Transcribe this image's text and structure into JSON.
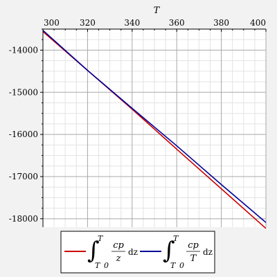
{
  "chart_data": {
    "type": "line",
    "xlabel": "T",
    "ylabel": "",
    "xlim": [
      300,
      400
    ],
    "ylim": [
      -18200,
      -13500
    ],
    "x_ticks": [
      300,
      320,
      340,
      360,
      380,
      400
    ],
    "y_ticks": [
      -14000,
      -15000,
      -16000,
      -17000,
      -18000
    ],
    "x_tick_labels": [
      "300",
      "320",
      "340",
      "360",
      "380",
      "400"
    ],
    "y_tick_labels": [
      "-14000",
      "-15000",
      "-16000",
      "-17000",
      "-18000"
    ],
    "grid": true,
    "legend_position": "bottom",
    "series": [
      {
        "color": "#cc0000",
        "x": [
          300,
          320,
          340,
          360,
          380,
          400
        ],
        "y": [
          -13560,
          -14480,
          -15400,
          -16350,
          -17290,
          -18230
        ]
      },
      {
        "color": "#000099",
        "x": [
          300,
          320,
          340,
          360,
          380,
          400
        ],
        "y": [
          -13530,
          -14480,
          -15380,
          -16270,
          -17190,
          -18090
        ]
      }
    ],
    "legend": [
      {
        "color": "#cc0000",
        "upper_limit": "T",
        "lower_limit": "T",
        "lower_limit_sub": "0",
        "numerator": "cp",
        "denominator": "z",
        "differential": "dz"
      },
      {
        "color": "#000099",
        "upper_limit": "T",
        "lower_limit": "T",
        "lower_limit_sub": "0",
        "numerator": "cp",
        "denominator": "T",
        "differential": "dz"
      }
    ]
  }
}
